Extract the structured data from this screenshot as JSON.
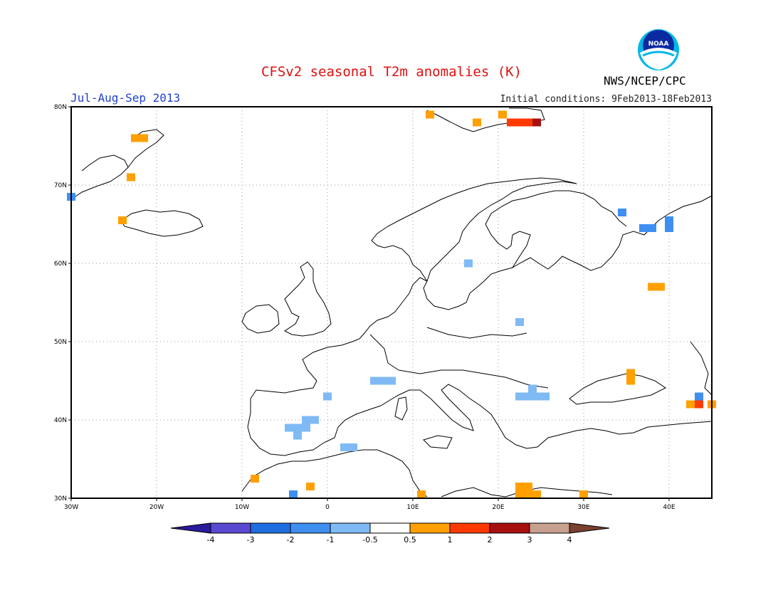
{
  "title": "CFSv2 seasonal T2m anomalies (K)",
  "period": "Jul-Aug-Sep 2013",
  "initial_conditions": "Initial conditions: 9Feb2013-18Feb2013",
  "organization": "NWS/NCEP/CPC",
  "logo": {
    "icon": "noaa-logo-icon",
    "text": "NOAA"
  },
  "map": {
    "lon_range": [
      -30,
      45
    ],
    "lat_range": [
      30,
      80
    ],
    "x_ticks": [
      "30W",
      "20W",
      "10W",
      "0",
      "10E",
      "20E",
      "30E",
      "40E"
    ],
    "y_ticks": [
      "30N",
      "40N",
      "50N",
      "60N",
      "70N",
      "80N"
    ],
    "grid": "dotted"
  },
  "colorbar": {
    "labels": [
      "-4",
      "-3",
      "-2",
      "-1",
      "-0.5",
      "0.5",
      "1",
      "2",
      "3",
      "4"
    ],
    "colors": [
      "#2a1a9c",
      "#5a48d0",
      "#1f6ee0",
      "#3f8ff0",
      "#7fbaf5",
      "#ffffff",
      "#ffa000",
      "#ff3a00",
      "#a81010",
      "#c8a090",
      "#7a4030"
    ]
  },
  "anomaly_cells": [
    {
      "lon": -30,
      "lat": 68.5,
      "class": 3
    },
    {
      "lon": -22.5,
      "lat": 76,
      "class": 6
    },
    {
      "lon": -21.5,
      "lat": 76,
      "class": 6
    },
    {
      "lon": -23,
      "lat": 71,
      "class": 6
    },
    {
      "lon": -24,
      "lat": 65.5,
      "class": 6
    },
    {
      "lon": 12,
      "lat": 79,
      "class": 6
    },
    {
      "lon": 17.5,
      "lat": 78,
      "class": 6
    },
    {
      "lon": 20.5,
      "lat": 79,
      "class": 6
    },
    {
      "lon": 21.5,
      "lat": 78,
      "class": 7
    },
    {
      "lon": 22.5,
      "lat": 78,
      "class": 7
    },
    {
      "lon": 23.5,
      "lat": 78,
      "class": 7
    },
    {
      "lon": 24.5,
      "lat": 78,
      "class": 8
    },
    {
      "lon": 16.5,
      "lat": 60,
      "class": 4
    },
    {
      "lon": 34.5,
      "lat": 66.5,
      "class": 3
    },
    {
      "lon": 37,
      "lat": 64.5,
      "class": 3
    },
    {
      "lon": 38,
      "lat": 64.5,
      "class": 3
    },
    {
      "lon": 40,
      "lat": 65.5,
      "class": 3
    },
    {
      "lon": 40,
      "lat": 64.5,
      "class": 3
    },
    {
      "lon": 38,
      "lat": 57,
      "class": 6
    },
    {
      "lon": 39,
      "lat": 57,
      "class": 6
    },
    {
      "lon": 22.5,
      "lat": 52.5,
      "class": 4
    },
    {
      "lon": 35.5,
      "lat": 46,
      "class": 6
    },
    {
      "lon": 35.5,
      "lat": 45,
      "class": 6
    },
    {
      "lon": 42.5,
      "lat": 42,
      "class": 6
    },
    {
      "lon": 43.5,
      "lat": 42,
      "class": 7
    },
    {
      "lon": 43.5,
      "lat": 43,
      "class": 3
    },
    {
      "lon": 45,
      "lat": 42,
      "class": 6
    },
    {
      "lon": 0,
      "lat": 43,
      "class": 4
    },
    {
      "lon": 5.5,
      "lat": 45,
      "class": 4
    },
    {
      "lon": 6.5,
      "lat": 45,
      "class": 4
    },
    {
      "lon": 7.5,
      "lat": 45,
      "class": 4
    },
    {
      "lon": 22.5,
      "lat": 43,
      "class": 4
    },
    {
      "lon": 23.5,
      "lat": 43,
      "class": 4
    },
    {
      "lon": 24.5,
      "lat": 43,
      "class": 4
    },
    {
      "lon": 25.5,
      "lat": 43,
      "class": 4
    },
    {
      "lon": 24,
      "lat": 44,
      "class": 4
    },
    {
      "lon": -4.5,
      "lat": 39,
      "class": 4
    },
    {
      "lon": -3.5,
      "lat": 39,
      "class": 4
    },
    {
      "lon": -2.5,
      "lat": 40,
      "class": 4
    },
    {
      "lon": -1.5,
      "lat": 40,
      "class": 4
    },
    {
      "lon": -3.5,
      "lat": 38,
      "class": 4
    },
    {
      "lon": -2.5,
      "lat": 39,
      "class": 4
    },
    {
      "lon": 2,
      "lat": 36.5,
      "class": 4
    },
    {
      "lon": 3,
      "lat": 36.5,
      "class": 4
    },
    {
      "lon": -8.5,
      "lat": 32.5,
      "class": 6
    },
    {
      "lon": -2,
      "lat": 31.5,
      "class": 6
    },
    {
      "lon": -4,
      "lat": 30.5,
      "class": 3
    },
    {
      "lon": 11,
      "lat": 30.5,
      "class": 6
    },
    {
      "lon": 22.5,
      "lat": 31.5,
      "class": 6
    },
    {
      "lon": 23.5,
      "lat": 31.5,
      "class": 6
    },
    {
      "lon": 22.5,
      "lat": 30.5,
      "class": 6
    },
    {
      "lon": 23.5,
      "lat": 30.5,
      "class": 6
    },
    {
      "lon": 24.5,
      "lat": 30.5,
      "class": 6
    },
    {
      "lon": 30,
      "lat": 30.5,
      "class": 6
    }
  ]
}
